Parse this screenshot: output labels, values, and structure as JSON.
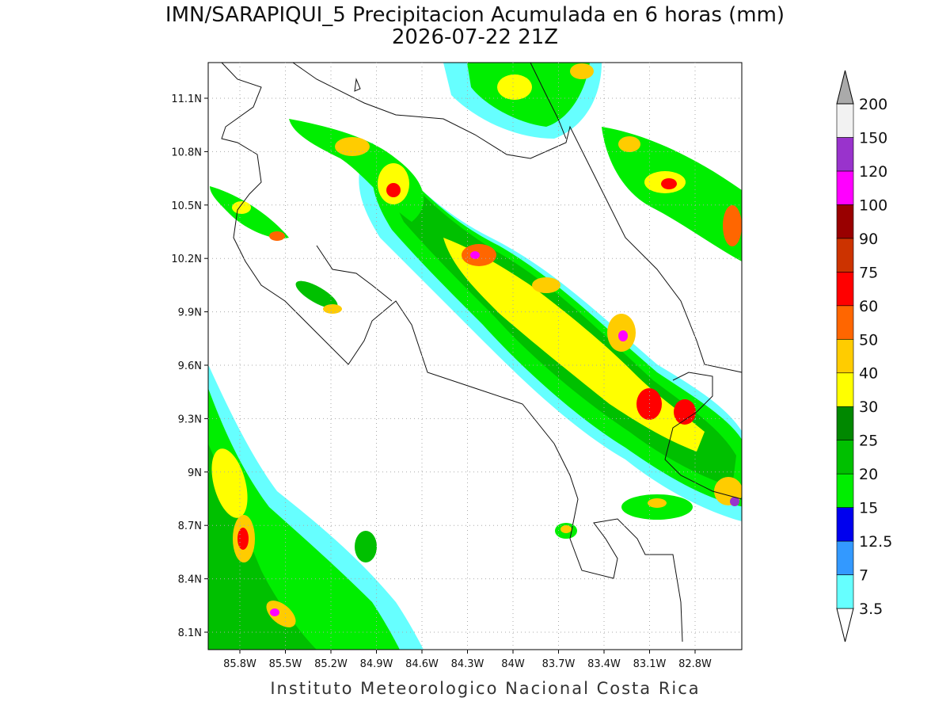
{
  "title": "IMN/SARAPIQUI_5 Precipitacion Acumulada en 6 horas (mm)",
  "subtitle": "2026-07-22 21Z",
  "footer": "Instituto Meteorologico Nacional Costa Rica",
  "lat_ticks": [
    "11.1N",
    "10.8N",
    "10.5N",
    "10.2N",
    "9.9N",
    "9.6N",
    "9.3N",
    "9N",
    "8.7N",
    "8.4N",
    "8.1N"
  ],
  "lon_ticks": [
    "85.8W",
    "85.5W",
    "85.2W",
    "84.9W",
    "84.6W",
    "84.3W",
    "84W",
    "83.7W",
    "83.4W",
    "83.1W",
    "82.8W"
  ],
  "colorbar": {
    "levels": [
      3.5,
      7,
      12.5,
      15,
      20,
      25,
      30,
      40,
      50,
      60,
      75,
      90,
      100,
      120,
      150,
      200
    ],
    "colors": [
      "#ffffff",
      "#66ffff",
      "#3399ff",
      "#0000ee",
      "#00ee00",
      "#00c000",
      "#008800",
      "#ffff00",
      "#ffcc00",
      "#ff6600",
      "#ff0000",
      "#cc3300",
      "#990000",
      "#ff00ff",
      "#9933cc",
      "#f2f2f2",
      "#aaaaaa"
    ]
  }
}
